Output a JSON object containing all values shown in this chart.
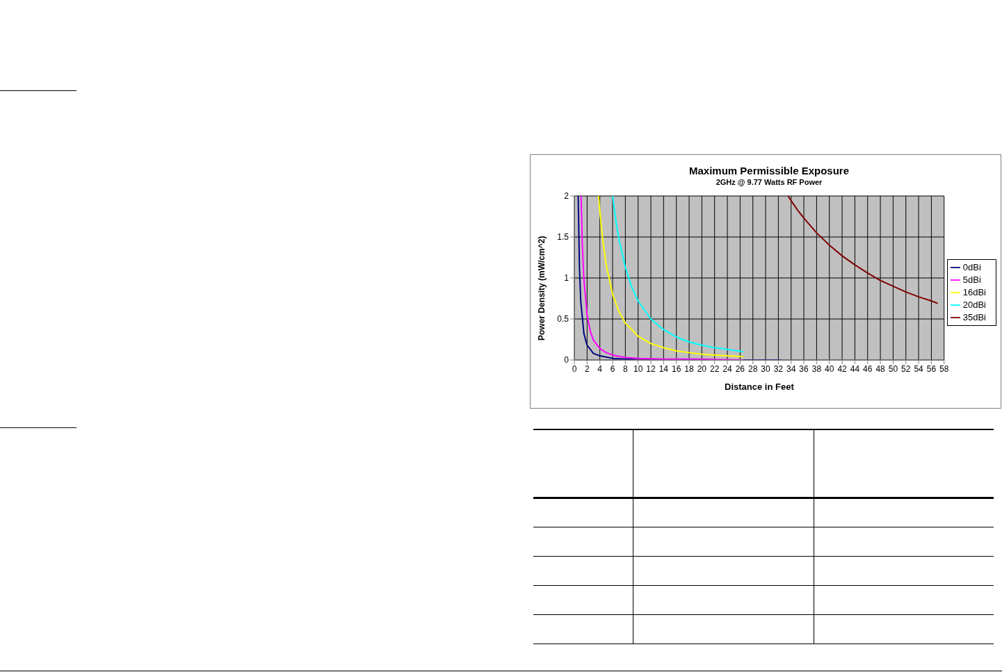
{
  "chart_data": {
    "type": "line",
    "title": "Maximum Permissible Exposure",
    "subtitle": "2GHz @ 9.77 Watts RF Power",
    "xlabel": "Distance in Feet",
    "ylabel": "Power Density (mW/cm^2)",
    "xlim": [
      0,
      58
    ],
    "xticks": [
      0,
      2,
      4,
      6,
      8,
      10,
      12,
      14,
      16,
      18,
      20,
      22,
      24,
      26,
      28,
      30,
      32,
      34,
      36,
      38,
      40,
      42,
      44,
      46,
      48,
      50,
      52,
      54,
      56,
      58
    ],
    "ylim": [
      0,
      2
    ],
    "yticks": [
      0,
      0.5,
      1,
      1.5,
      2
    ],
    "grid": true,
    "legend": "right",
    "marker": "none",
    "line_style": "solid",
    "series": [
      {
        "name": "0dBi",
        "color": "#000080",
        "x": [
          0.6,
          0.8,
          1,
          1.5,
          2,
          3,
          4,
          6,
          8,
          12,
          20,
          32.5
        ],
        "values": [
          2,
          1.13,
          0.72,
          0.32,
          0.18,
          0.08,
          0.05,
          0.02,
          0.01,
          0.01,
          0,
          0
        ]
      },
      {
        "name": "5dBi",
        "color": "#ff00ff",
        "x": [
          1.05,
          1.25,
          1.5,
          2,
          2.5,
          3,
          4,
          5,
          6,
          8,
          10,
          14,
          20,
          26.5
        ],
        "values": [
          2,
          1.41,
          0.98,
          0.55,
          0.35,
          0.24,
          0.14,
          0.09,
          0.06,
          0.03,
          0.02,
          0.01,
          0.01,
          0
        ]
      },
      {
        "name": "16dBi",
        "color": "#ffff00",
        "x": [
          3.8,
          4,
          4.5,
          5,
          6,
          7,
          8,
          10,
          12,
          14,
          16,
          18,
          20,
          22,
          24,
          26.5
        ],
        "values": [
          2,
          1.81,
          1.43,
          1.16,
          0.8,
          0.59,
          0.45,
          0.29,
          0.2,
          0.15,
          0.11,
          0.09,
          0.07,
          0.06,
          0.05,
          0.04
        ]
      },
      {
        "name": "20dBi",
        "color": "#00ffff",
        "x": [
          6,
          6.5,
          7,
          8,
          9,
          10,
          12,
          14,
          16,
          18,
          20,
          22,
          24,
          26.5
        ],
        "values": [
          2,
          1.7,
          1.47,
          1.13,
          0.89,
          0.72,
          0.5,
          0.37,
          0.28,
          0.22,
          0.18,
          0.15,
          0.13,
          0.1
        ]
      },
      {
        "name": "35dBi",
        "color": "#800000",
        "x": [
          33.5,
          35,
          36,
          38,
          40,
          42,
          44,
          46,
          48,
          50,
          52,
          54,
          56,
          57
        ],
        "values": [
          2,
          1.83,
          1.73,
          1.55,
          1.4,
          1.27,
          1.16,
          1.06,
          0.97,
          0.9,
          0.83,
          0.77,
          0.72,
          0.69
        ]
      }
    ]
  }
}
